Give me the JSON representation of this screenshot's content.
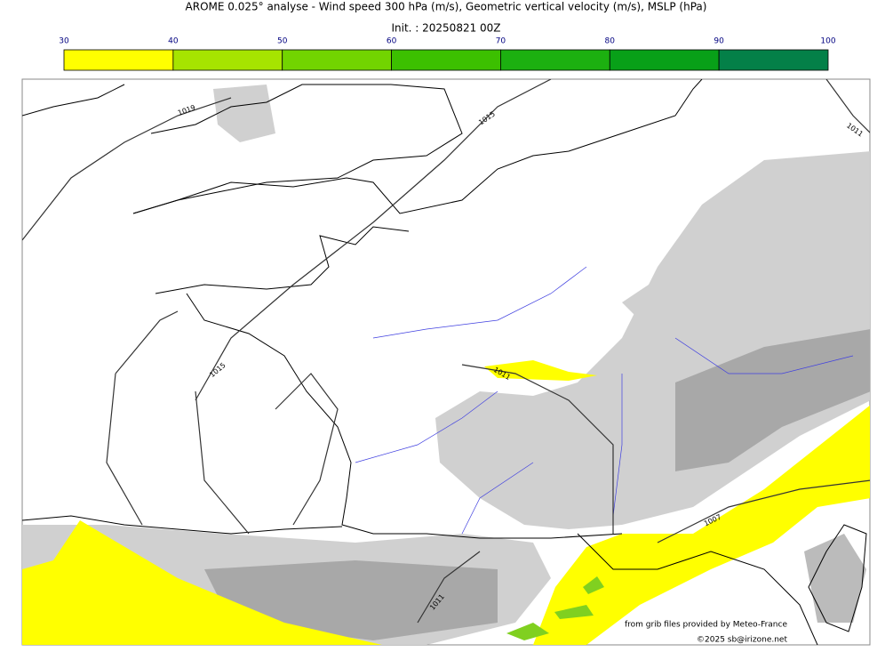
{
  "header": {
    "title": "AROME 0.025° analyse - Wind speed 300 hPa (m/s), Geometric vertical velocity (m/s), MSLP (hPa)",
    "init": "Init. : 20250821 00Z"
  },
  "colorbar": {
    "ticks": [
      30,
      40,
      50,
      60,
      70,
      80,
      90,
      100
    ],
    "colors": [
      "#ffff00",
      "#a6e400",
      "#72d400",
      "#3cc000",
      "#1cb010",
      "#08a018",
      "#048048",
      "#047048"
    ]
  },
  "isobar_labels": [
    "1019",
    "1015",
    "1015",
    "1011",
    "1007",
    "1011",
    "1011"
  ],
  "credits": {
    "source": "from grib files provided by Meteo-France",
    "copyright": "©2025 sb@irizone.net"
  }
}
